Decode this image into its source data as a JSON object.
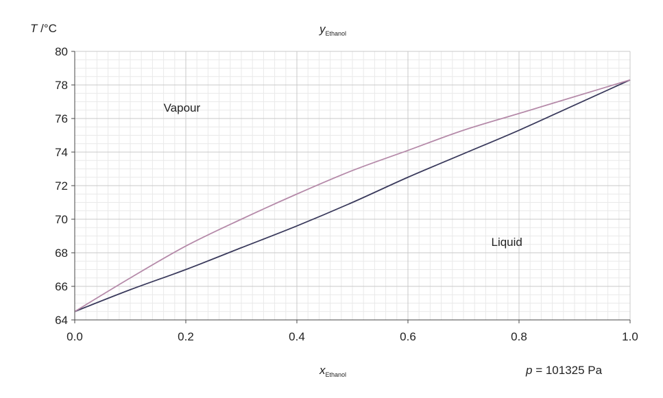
{
  "chart_data": {
    "type": "line",
    "top_label": {
      "main": "y",
      "sub": "Ethanol"
    },
    "xlabel": {
      "main": "x",
      "sub": "Ethanol"
    },
    "ylabel": {
      "main": "T",
      "rest": " /°C"
    },
    "pressure_label": {
      "var": "p",
      "rest": " = 101325 Pa"
    },
    "xlim": [
      0.0,
      1.0
    ],
    "ylim": [
      64,
      80
    ],
    "x_ticks": [
      "0.0",
      "0.2",
      "0.4",
      "0.6",
      "0.8",
      "1.0"
    ],
    "y_ticks": [
      "64",
      "66",
      "68",
      "70",
      "72",
      "74",
      "76",
      "78",
      "80"
    ],
    "grid": true,
    "region_labels": [
      {
        "text": "Vapour",
        "x": 0.16,
        "y": 76.4
      },
      {
        "text": "Liquid",
        "x": 0.75,
        "y": 68.4
      }
    ],
    "series": [
      {
        "role": "bubble-point",
        "color": "#3a3a5c",
        "x": [
          0.0,
          0.1,
          0.2,
          0.3,
          0.4,
          0.5,
          0.6,
          0.7,
          0.8,
          0.9,
          1.0
        ],
        "y": [
          64.5,
          65.8,
          67.0,
          68.3,
          69.6,
          71.0,
          72.5,
          73.9,
          75.3,
          76.8,
          78.3
        ]
      },
      {
        "role": "dew-point",
        "color": "#b58aa9",
        "x": [
          0.0,
          0.1,
          0.2,
          0.3,
          0.4,
          0.5,
          0.6,
          0.7,
          0.8,
          0.9,
          1.0
        ],
        "y": [
          64.5,
          66.5,
          68.4,
          70.0,
          71.5,
          72.9,
          74.1,
          75.3,
          76.3,
          77.3,
          78.3
        ]
      }
    ]
  }
}
